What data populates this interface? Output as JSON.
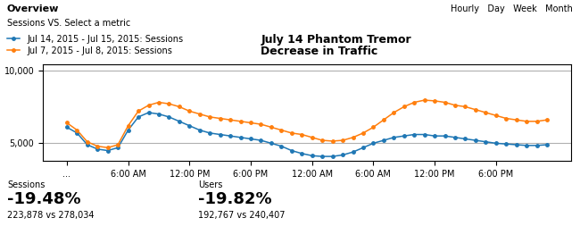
{
  "chart_data": {
    "type": "line",
    "title": "July 14 Phantom Tremor",
    "subtitle": "Decrease in Traffic",
    "annotations": [
      "Overview",
      "Sessions",
      "VS.",
      "Select a metric",
      "Hourly",
      "Day",
      "Week",
      "Month",
      "Sessions",
      "-19.48%",
      "223,878 vs 278,034",
      "Users",
      "-19.82%",
      "192,767 vs 240,407"
    ],
    "categories": [
      "...",
      null,
      null,
      null,
      null,
      null,
      "6:00 AM",
      null,
      null,
      null,
      null,
      null,
      "12:00 PM",
      null,
      null,
      null,
      null,
      null,
      "6:00 PM",
      null,
      null,
      null,
      null,
      null,
      "12:00 AM",
      null,
      null,
      null,
      null,
      null,
      "6:00 AM",
      null,
      null,
      null,
      null,
      null,
      "12:00 PM",
      null,
      null,
      null,
      null,
      null,
      "6:00 PM",
      null,
      null,
      null,
      null,
      null
    ],
    "series": [
      {
        "name": "Jul 14, 2015 - Jul 15, 2015: Sessions",
        "values": [
          6100,
          5700,
          4900,
          4600,
          4500,
          4700,
          5900,
          6800,
          7100,
          7000,
          6800,
          6500,
          6200,
          5900,
          5700,
          5600,
          5500,
          5400,
          5300,
          5200,
          5000,
          4800,
          4500,
          4300,
          4150,
          4100,
          4100,
          4200,
          4400,
          4700,
          5000,
          5200,
          5400,
          5500,
          5600,
          5600,
          5500,
          5500,
          5400,
          5300,
          5200,
          5100,
          5000,
          4950,
          4900,
          4850,
          4850,
          4900
        ]
      },
      {
        "name": "Jul 7, 2015 - Jul 8, 2015: Sessions",
        "values": [
          6400,
          5900,
          5100,
          4800,
          4700,
          4900,
          6200,
          7200,
          7600,
          7800,
          7700,
          7500,
          7200,
          7000,
          6800,
          6700,
          6600,
          6500,
          6400,
          6300,
          6100,
          5900,
          5700,
          5600,
          5400,
          5200,
          5150,
          5200,
          5400,
          5700,
          6100,
          6600,
          7100,
          7500,
          7800,
          7950,
          7900,
          7800,
          7600,
          7500,
          7300,
          7100,
          6900,
          6700,
          6600,
          6500,
          6500,
          6600
        ]
      }
    ],
    "ylim": [
      3800,
      10400
    ],
    "yticks": [
      {
        "value": 5000,
        "label": "5,000"
      },
      {
        "value": 10000,
        "label": "10,000"
      }
    ],
    "grid": "y",
    "legend": "upper left",
    "marker": "circle"
  }
}
